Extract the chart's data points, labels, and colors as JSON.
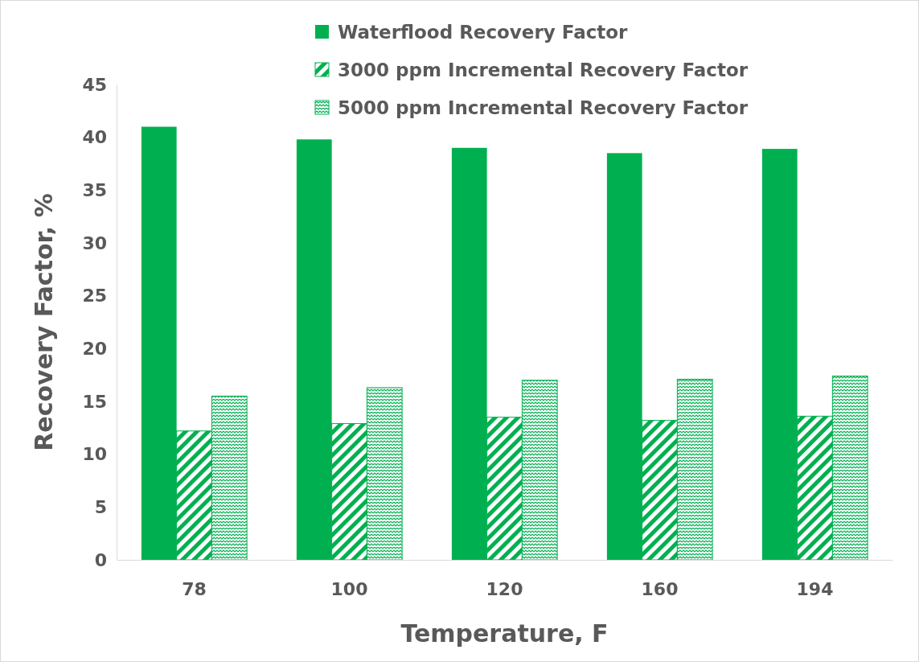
{
  "chart_data": {
    "type": "bar",
    "xlabel": "Temperature, F",
    "ylabel": "Recovery Factor, %",
    "categories": [
      "78",
      "100",
      "120",
      "160",
      "194"
    ],
    "series": [
      {
        "name": "Waterflood Recovery Factor",
        "color": "#00b050",
        "values": [
          41.0,
          39.8,
          39.0,
          38.5,
          38.9
        ]
      },
      {
        "name": "3000 ppm Incremental Recovery Factor",
        "color": "#00b050",
        "values": [
          12.2,
          12.9,
          13.5,
          13.2,
          13.6
        ]
      },
      {
        "name": "5000 ppm Incremental Recovery Factor",
        "color": "#00b050",
        "values": [
          15.5,
          16.3,
          17.0,
          17.1,
          17.4
        ]
      }
    ],
    "ylim": [
      0,
      45
    ],
    "yticks": [
      0,
      5,
      10,
      15,
      20,
      25,
      30,
      35,
      40,
      45
    ],
    "grid": false,
    "legend": "top"
  }
}
